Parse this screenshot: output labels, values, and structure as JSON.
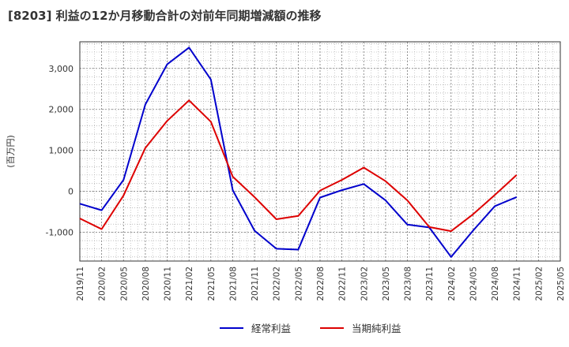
{
  "chart_data": {
    "type": "line",
    "title": "[8203]  利益の12か月移動合計の対前年同期増減額の推移",
    "ylabel": "(百万円)",
    "xlabel": "",
    "ylim": [
      -1700,
      3650
    ],
    "yticks": [
      3000,
      2000,
      1000,
      0,
      -1000
    ],
    "ytick_labels": [
      "3,000",
      "2,000",
      "1,000",
      "0",
      "-1,000"
    ],
    "x_tick_labels": [
      "2019/11",
      "2020/02",
      "2020/05",
      "2020/08",
      "2020/11",
      "2021/02",
      "2021/05",
      "2021/08",
      "2021/11",
      "2022/02",
      "2022/05",
      "2022/08",
      "2022/11",
      "2023/02",
      "2023/05",
      "2023/08",
      "2023/11",
      "2024/02",
      "2024/05",
      "2024/08",
      "2024/11",
      "2025/02",
      "2025/05"
    ],
    "grid": true,
    "legend_position": "bottom",
    "series": [
      {
        "name": "経常利益",
        "color": "#0000cc",
        "values": [
          -300,
          -460,
          280,
          2120,
          3100,
          3510,
          2730,
          30,
          -960,
          -1400,
          -1420,
          -150,
          30,
          180,
          -220,
          -810,
          -880,
          -1600,
          -960,
          -360,
          -140
        ]
      },
      {
        "name": "当期純利益",
        "color": "#dd0000",
        "values": [
          -660,
          -920,
          -100,
          1060,
          1720,
          2220,
          1700,
          360,
          -140,
          -680,
          -600,
          20,
          280,
          580,
          250,
          -220,
          -870,
          -970,
          -560,
          -90,
          400
        ]
      }
    ]
  }
}
